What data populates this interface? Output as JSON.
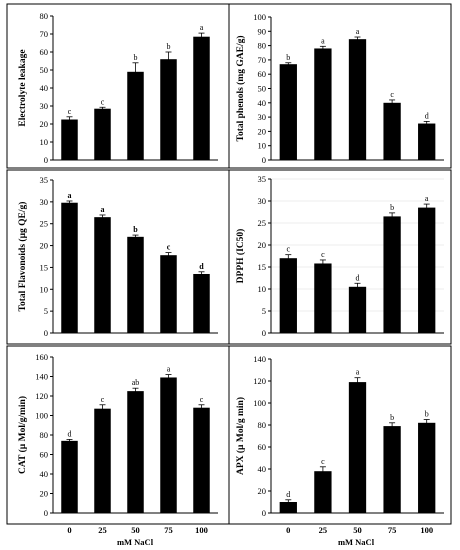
{
  "chart_data": [
    {
      "type": "bar",
      "panel": "top-left",
      "categories": [
        "0",
        "25",
        "50",
        "75",
        "100"
      ],
      "values": [
        22.5,
        28.5,
        49,
        56,
        68.5
      ],
      "errors": [
        1.5,
        0.8,
        5,
        4,
        2
      ],
      "letters": [
        "c",
        "c",
        "b",
        "b",
        "a"
      ],
      "ylabel": "Electrolyte leakage",
      "ylim": [
        0,
        80
      ],
      "yticks": [
        "0",
        "10",
        "20",
        "30",
        "40",
        "50",
        "60",
        "70",
        "80"
      ],
      "grid": false,
      "letters_bold": false
    },
    {
      "type": "bar",
      "panel": "top-right",
      "categories": [
        "0",
        "25",
        "50",
        "75",
        "100"
      ],
      "values": [
        67,
        78,
        84.5,
        40,
        25.5
      ],
      "errors": [
        1,
        1.5,
        1.5,
        2,
        1.5
      ],
      "letters": [
        "b",
        "a",
        "a",
        "c",
        "d"
      ],
      "ylabel": "Total phenols (mg GAE/g)",
      "ylim": [
        0,
        100
      ],
      "yticks": [
        "0",
        "10",
        "20",
        "30",
        "40",
        "50",
        "60",
        "70",
        "80",
        "90",
        "100"
      ],
      "grid": false,
      "letters_bold": false
    },
    {
      "type": "bar",
      "panel": "middle-left",
      "categories": [
        "0",
        "25",
        "50",
        "75",
        "100"
      ],
      "values": [
        29.8,
        26.5,
        22,
        17.8,
        13.5
      ],
      "errors": [
        0.4,
        0.5,
        0.4,
        0.6,
        0.5
      ],
      "letters": [
        "a",
        "a",
        "b",
        "c",
        "d"
      ],
      "ylabel": "Total Flavonoids (µg QE/g)",
      "ylim": [
        0,
        35
      ],
      "yticks": [
        "0",
        "5",
        "10",
        "15",
        "20",
        "25",
        "30",
        "35"
      ],
      "grid": false,
      "letters_bold": true
    },
    {
      "type": "bar",
      "panel": "middle-right",
      "categories": [
        "0",
        "25",
        "50",
        "75",
        "100"
      ],
      "values": [
        17,
        15.8,
        10.5,
        26.5,
        28.5
      ],
      "errors": [
        0.8,
        0.8,
        0.8,
        0.8,
        0.8
      ],
      "letters": [
        "c",
        "c",
        "d",
        "b",
        "a"
      ],
      "ylabel": "DPPH (IC50)",
      "ylim": [
        0,
        35
      ],
      "yticks": [
        "0",
        "5",
        "10",
        "15",
        "20",
        "25",
        "30",
        "35"
      ],
      "grid": true,
      "letters_bold": false
    },
    {
      "type": "bar",
      "panel": "bottom-left",
      "categories": [
        "0",
        "25",
        "50",
        "75",
        "100"
      ],
      "values": [
        74,
        107,
        125,
        139,
        108
      ],
      "errors": [
        1.5,
        4,
        3,
        3,
        3
      ],
      "letters": [
        "d",
        "c",
        "ab",
        "a",
        "c"
      ],
      "ylabel": "CAT (µ Mol/g/min)",
      "ylim": [
        0,
        160
      ],
      "yticks": [
        "0",
        "20",
        "40",
        "60",
        "80",
        "100",
        "120",
        "140",
        "160"
      ],
      "grid": false,
      "letters_bold": false
    },
    {
      "type": "bar",
      "panel": "bottom-right",
      "categories": [
        "0",
        "25",
        "50",
        "75",
        "100"
      ],
      "values": [
        10,
        38,
        119,
        79,
        82
      ],
      "errors": [
        2,
        4,
        4,
        3,
        3
      ],
      "letters": [
        "d",
        "c",
        "a",
        "b",
        "b"
      ],
      "ylabel": "APX (µ Mol/g min)",
      "ylim": [
        0,
        140
      ],
      "yticks": [
        "0",
        "20",
        "40",
        "60",
        "80",
        "100",
        "120",
        "140"
      ],
      "grid": false,
      "letters_bold": false
    }
  ],
  "xlabel": "mM NaCl"
}
